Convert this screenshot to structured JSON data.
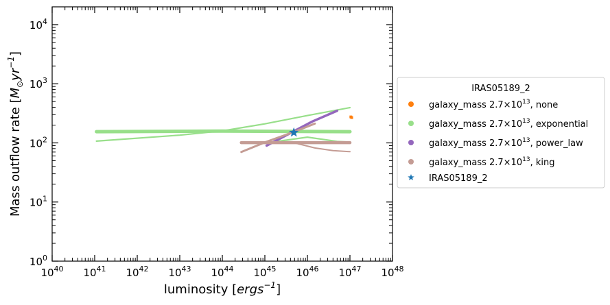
{
  "chart_data": {
    "type": "scatter",
    "title": "",
    "xlabel_parts": [
      "luminosity [",
      "ergs",
      "−1",
      "]"
    ],
    "ylabel_parts": [
      "Mass outflow rate [",
      "M",
      "⊙",
      "yr",
      "−1",
      "]"
    ],
    "xscale": "log",
    "yscale": "log",
    "xlim": [
      1e+40,
      1e+48
    ],
    "ylim": [
      1,
      20000
    ],
    "x_ticks": [
      {
        "v": 1e+40,
        "base": "10",
        "exp": "40"
      },
      {
        "v": 1e+41,
        "base": "10",
        "exp": "41"
      },
      {
        "v": 1e+42,
        "base": "10",
        "exp": "42"
      },
      {
        "v": 1e+43,
        "base": "10",
        "exp": "43"
      },
      {
        "v": 1e+44,
        "base": "10",
        "exp": "44"
      },
      {
        "v": 1e+45,
        "base": "10",
        "exp": "45"
      },
      {
        "v": 1e+46,
        "base": "10",
        "exp": "46"
      },
      {
        "v": 1e+47,
        "base": "10",
        "exp": "47"
      },
      {
        "v": 1e+48,
        "base": "10",
        "exp": "48"
      }
    ],
    "y_ticks": [
      {
        "v": 1,
        "base": "10",
        "exp": "0"
      },
      {
        "v": 10,
        "base": "10",
        "exp": "1"
      },
      {
        "v": 100,
        "base": "10",
        "exp": "2"
      },
      {
        "v": 1000,
        "base": "10",
        "exp": "3"
      },
      {
        "v": 10000,
        "base": "10",
        "exp": "4"
      }
    ],
    "legend": {
      "title": "IRAS05189_2",
      "placement": "outside-right",
      "entries": [
        {
          "prefix": "galaxy_mass 2.7×10",
          "exp": "13",
          "suffix": ", none",
          "color": "#ff7f0e",
          "marker": "dot"
        },
        {
          "prefix": "galaxy_mass 2.7×10",
          "exp": "13",
          "suffix": ", exponential",
          "color": "#98df8a",
          "marker": "dot"
        },
        {
          "prefix": "galaxy_mass 2.7×10",
          "exp": "13",
          "suffix": ", power_law",
          "color": "#9467bd",
          "marker": "dot"
        },
        {
          "prefix": "galaxy_mass 2.7×10",
          "exp": "13",
          "suffix": ", king",
          "color": "#c49c94",
          "marker": "dot"
        },
        {
          "prefix": "IRAS05189_2",
          "exp": "",
          "suffix": "",
          "color": "#1f77b4",
          "marker": "star"
        }
      ]
    },
    "series": [
      {
        "name": "galaxy_mass 2.7×1013, none",
        "color": "#ff7f0e",
        "kind": "points",
        "points": [
          [
            1.05e+47,
            275
          ],
          [
            1.1e+47,
            268
          ]
        ]
      },
      {
        "name": "galaxy_mass 2.7×1013, exponential",
        "color": "#98df8a",
        "kind": "lines",
        "lines": [
          {
            "width": 5,
            "points": [
              [
                1.1e+41,
                155
              ],
              [
                1e+44,
                158
              ],
              [
                1e+47,
                155
              ]
            ]
          },
          {
            "width": 2.2,
            "points": [
              [
                1.1e+41,
                107
              ],
              [
                1e+43,
                135
              ],
              [
                1e+44,
                160
              ],
              [
                1e+45,
                210
              ],
              [
                1e+46,
                290
              ],
              [
                1e+47,
                395
              ]
            ]
          },
          {
            "width": 2.2,
            "points": [
              [
                1.1e+45,
                100
              ],
              [
                1e+46,
                125
              ],
              [
                5e+46,
                106
              ],
              [
                1e+47,
                103
              ]
            ]
          }
        ]
      },
      {
        "name": "galaxy_mass 2.7×1013, power_law",
        "color": "#9467bd",
        "kind": "lines",
        "lines": [
          {
            "width": 3.5,
            "points": [
              [
                1.1e+45,
                90
              ],
              [
                5e+45,
                160
              ],
              [
                1.3e+46,
                230
              ],
              [
                5e+46,
                350
              ]
            ]
          }
        ]
      },
      {
        "name": "galaxy_mass 2.7×1013, king",
        "color": "#c49c94",
        "kind": "lines",
        "lines": [
          {
            "width": 4.5,
            "points": [
              [
                2.8e+44,
                101
              ],
              [
                1e+47,
                101
              ]
            ]
          },
          {
            "width": 3,
            "points": [
              [
                2.8e+44,
                70
              ],
              [
                1e+45,
                102
              ],
              [
                5e+45,
                155
              ],
              [
                1.5e+46,
                212
              ]
            ]
          },
          {
            "width": 2,
            "points": [
              [
                5e+45,
                100
              ],
              [
                1.5e+46,
                82
              ],
              [
                4e+46,
                74
              ],
              [
                1e+47,
                71
              ]
            ]
          }
        ]
      },
      {
        "name": "IRAS05189_2",
        "color": "#1f77b4",
        "kind": "star",
        "points": [
          [
            4.8e+45,
            150
          ]
        ]
      }
    ]
  }
}
